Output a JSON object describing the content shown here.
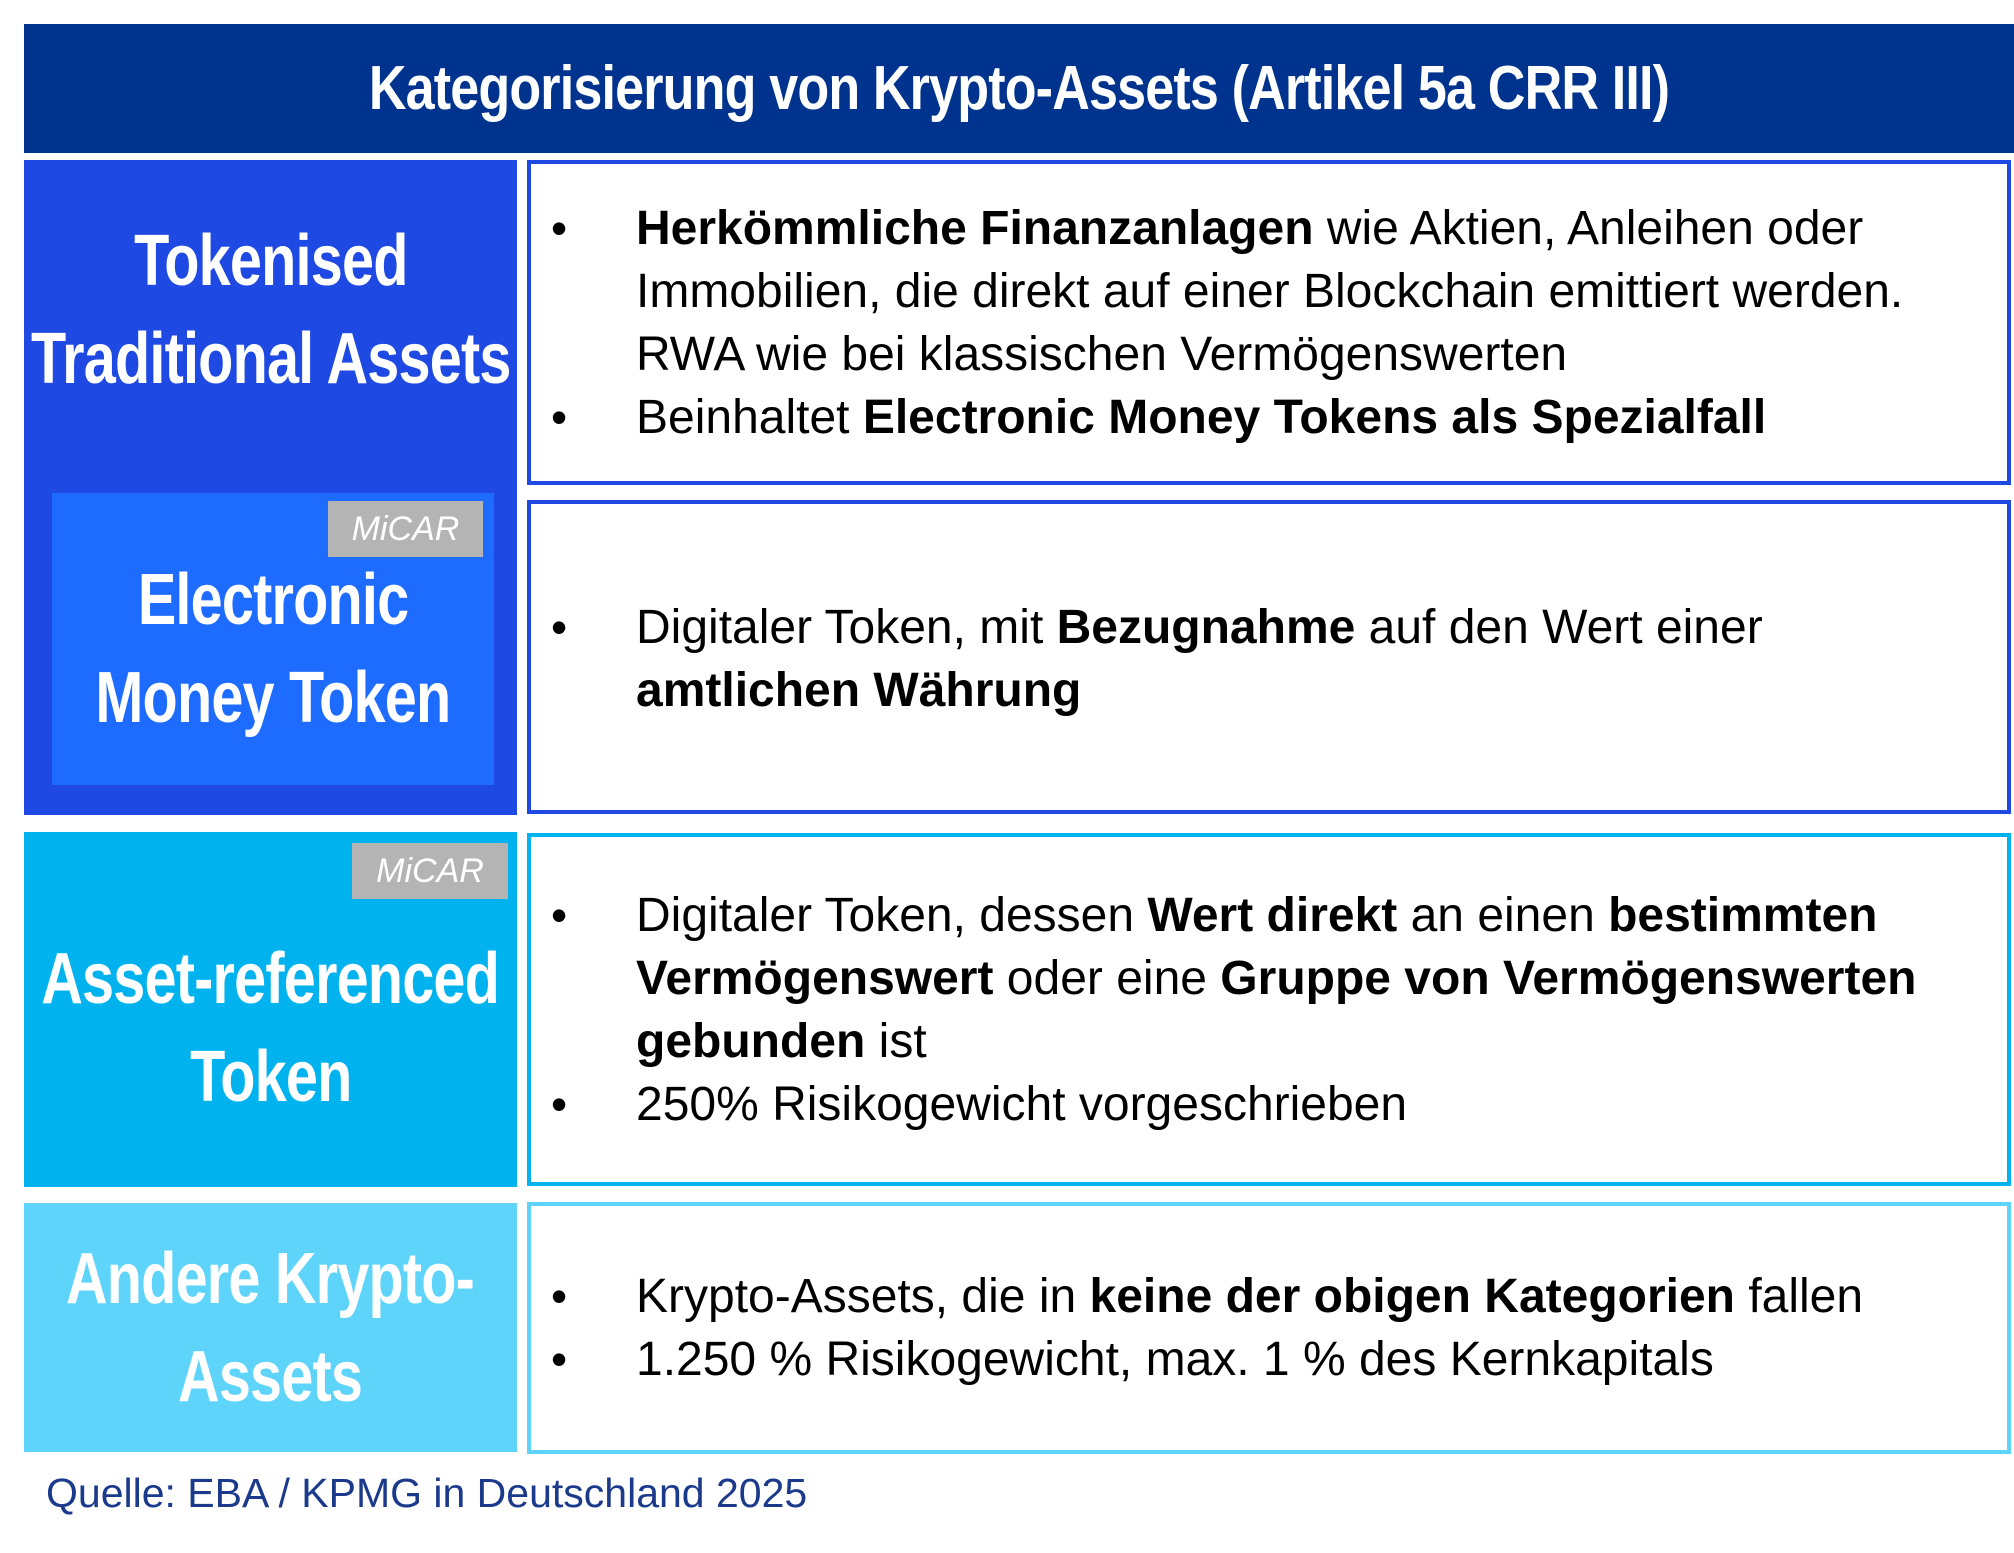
{
  "header": {
    "title": "Kategorisierung von Krypto-Assets (Artikel 5a CRR III)",
    "color": "#00338d"
  },
  "rows": [
    {
      "category": [
        "Tokenised",
        "Traditional Assets"
      ],
      "color": "#1e49e2",
      "bullets": [
        {
          "parts": [
            {
              "t": "Herkömmliche Finanzanlagen",
              "b": true
            },
            {
              "t": " wie Aktien, Anleihen oder Immobilien, die direkt auf einer Blockchain emittiert werden. RWA wie bei klassischen Vermögenswerten",
              "b": false
            }
          ]
        },
        {
          "parts": [
            {
              "t": "Beinhaltet ",
              "b": false
            },
            {
              "t": "Electronic Money Tokens als Spezialfall",
              "b": true
            }
          ]
        }
      ]
    },
    {
      "category": [
        "Electronic",
        "Money Token"
      ],
      "color": "#1e6cff",
      "badge": "MiCAR",
      "bullets": [
        {
          "parts": [
            {
              "t": "Digitaler Token, mit ",
              "b": false
            },
            {
              "t": "Bezugnahme",
              "b": true
            },
            {
              "t": " auf den Wert einer ",
              "b": false
            },
            {
              "t": "amtlichen Währung",
              "b": true
            }
          ]
        }
      ]
    },
    {
      "category": [
        "Asset-referenced",
        "Token"
      ],
      "color": "#00b3ef",
      "badge": "MiCAR",
      "bullets": [
        {
          "parts": [
            {
              "t": "Digitaler Token, dessen ",
              "b": false
            },
            {
              "t": "Wert direkt",
              "b": true
            },
            {
              "t": " an einen ",
              "b": false
            },
            {
              "t": "bestimmten Vermögenswert",
              "b": true
            },
            {
              "t": " oder eine ",
              "b": false
            },
            {
              "t": "Gruppe von Vermögenswerten gebunden",
              "b": true
            },
            {
              "t": " ist",
              "b": false
            }
          ]
        },
        {
          "parts": [
            {
              "t": "250% Risikogewicht vorgeschrieben",
              "b": false
            }
          ]
        }
      ]
    },
    {
      "category": [
        "Andere Krypto-",
        "Assets"
      ],
      "color": "#5fd4fa",
      "bullets": [
        {
          "parts": [
            {
              "t": "Krypto-Assets, die in ",
              "b": false
            },
            {
              "t": "keine der obigen Kategorien",
              "b": true
            },
            {
              "t": " fallen",
              "b": false
            }
          ]
        },
        {
          "parts": [
            {
              "t": "1.250 % Risikogewicht, max. 1 % des Kernkapitals",
              "b": false
            }
          ]
        }
      ]
    }
  ],
  "bullet_symbol": "•",
  "badge_color": "#b4b4b4",
  "source": "Quelle: EBA / KPMG in Deutschland 2025"
}
